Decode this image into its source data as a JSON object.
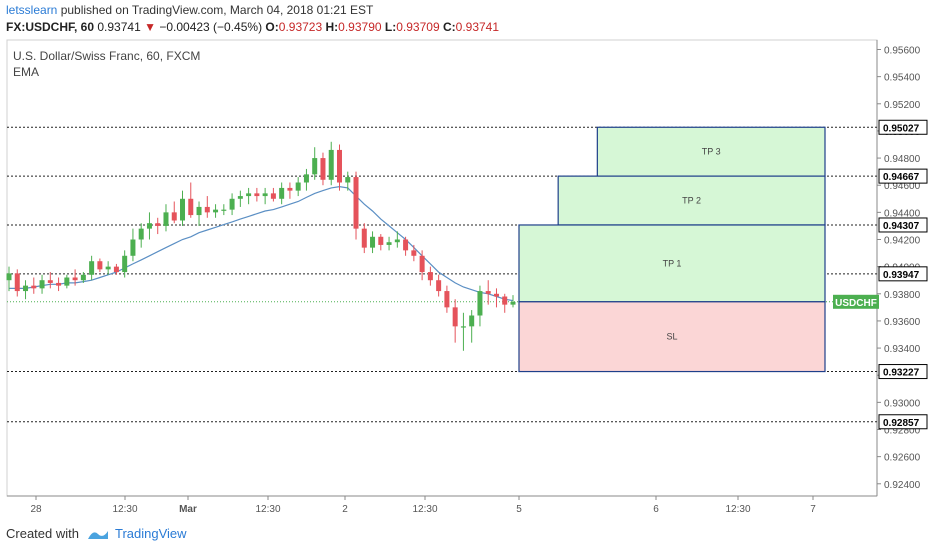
{
  "header": {
    "author": "letsslearn",
    "published_text": "published on TradingView.com, March 04, 2018 01:21 EST",
    "symbol_timeframe": "FX:USDCHF, 60",
    "last_price": "0.93741",
    "change": "−0.00423 (−0.45%)",
    "o_label": "O:",
    "o_value": "0.93723",
    "h_label": "H:",
    "h_value": "0.93790",
    "l_label": "L:",
    "l_value": "0.93709",
    "c_label": "C:",
    "c_value": "0.93741"
  },
  "pane": {
    "title": "U.S. Dollar/Swiss Franc, 60, FXCM",
    "indicator": "EMA"
  },
  "footer": {
    "created_with": "Created with",
    "brand": "TradingView"
  },
  "colors": {
    "up": "#4caf50",
    "down": "#e5535b",
    "ema": "#5b8fc4",
    "tp_fill": "#d6f7d6",
    "sl_fill": "#fbd6d6",
    "box_border": "#1e3f8a",
    "symbol_tag": "#4caf50"
  },
  "chart_data": {
    "type": "candlestick",
    "y_range": [
      0.9231,
      0.9567
    ],
    "y_ticks": [
      "0.95600",
      "0.95400",
      "0.95200",
      "0.95000",
      "0.94800",
      "0.94600",
      "0.94400",
      "0.94200",
      "0.94000",
      "0.93800",
      "0.93600",
      "0.93400",
      "0.93200",
      "0.93000",
      "0.92800",
      "0.92600",
      "0.92400"
    ],
    "x_tick_labels": [
      "28",
      "12:30",
      "Mar",
      "12:30",
      "2",
      "12:30",
      "5",
      "6",
      "12:30",
      "7"
    ],
    "levels": [
      {
        "value": 0.95027,
        "label": "0.95027"
      },
      {
        "value": 0.94667,
        "label": "0.94667"
      },
      {
        "value": 0.94307,
        "label": "0.94307"
      },
      {
        "value": 0.93947,
        "label": "0.93947"
      },
      {
        "value": 0.93227,
        "label": "0.93227"
      },
      {
        "value": 0.92857,
        "label": "0.92857"
      }
    ],
    "current_price": 0.93741,
    "symbol_tag": "USDCHF",
    "zones": [
      {
        "label": "TP 3",
        "top": 0.95027,
        "bottom": 0.94667,
        "kind": "tp",
        "start": "5 +10h",
        "end": "7 +0h"
      },
      {
        "label": "TP 2",
        "top": 0.94667,
        "bottom": 0.94307,
        "kind": "tp",
        "start": "5 +5h",
        "end": "7 +0h"
      },
      {
        "label": "TP 1",
        "top": 0.94307,
        "bottom": 0.93741,
        "kind": "tp",
        "start": "5 +0h",
        "end": "7 +0h"
      },
      {
        "label": "SL",
        "top": 0.93741,
        "bottom": 0.93227,
        "kind": "sl",
        "start": "5 +0h",
        "end": "7 +0h"
      }
    ],
    "candles": [
      [
        0.939,
        0.94,
        0.9382,
        0.9395
      ],
      [
        0.9395,
        0.9398,
        0.9378,
        0.9382
      ],
      [
        0.9382,
        0.939,
        0.9376,
        0.9386
      ],
      [
        0.9386,
        0.9392,
        0.938,
        0.9384
      ],
      [
        0.9384,
        0.9394,
        0.938,
        0.939
      ],
      [
        0.939,
        0.9396,
        0.9384,
        0.9388
      ],
      [
        0.9388,
        0.9392,
        0.9382,
        0.9386
      ],
      [
        0.9386,
        0.9394,
        0.9384,
        0.9392
      ],
      [
        0.9392,
        0.9398,
        0.9386,
        0.939
      ],
      [
        0.939,
        0.9396,
        0.9388,
        0.9394
      ],
      [
        0.9394,
        0.9408,
        0.939,
        0.9404
      ],
      [
        0.9404,
        0.9406,
        0.9396,
        0.9398
      ],
      [
        0.9398,
        0.9404,
        0.9394,
        0.94
      ],
      [
        0.94,
        0.9402,
        0.9394,
        0.9396
      ],
      [
        0.9396,
        0.9412,
        0.9392,
        0.9408
      ],
      [
        0.9408,
        0.9428,
        0.9404,
        0.942
      ],
      [
        0.942,
        0.9432,
        0.9414,
        0.9428
      ],
      [
        0.9428,
        0.944,
        0.942,
        0.9432
      ],
      [
        0.9432,
        0.9436,
        0.9424,
        0.943
      ],
      [
        0.943,
        0.9446,
        0.9426,
        0.944
      ],
      [
        0.944,
        0.9448,
        0.9432,
        0.9434
      ],
      [
        0.9434,
        0.9456,
        0.943,
        0.945
      ],
      [
        0.945,
        0.9462,
        0.9436,
        0.9438
      ],
      [
        0.9438,
        0.9448,
        0.943,
        0.9444
      ],
      [
        0.9444,
        0.9452,
        0.9436,
        0.944
      ],
      [
        0.944,
        0.9446,
        0.9436,
        0.9442
      ],
      [
        0.9442,
        0.9446,
        0.9438,
        0.9442
      ],
      [
        0.9442,
        0.9454,
        0.9438,
        0.945
      ],
      [
        0.945,
        0.9456,
        0.9444,
        0.9452
      ],
      [
        0.9452,
        0.9458,
        0.9446,
        0.9454
      ],
      [
        0.9454,
        0.9458,
        0.9448,
        0.9452
      ],
      [
        0.9452,
        0.9458,
        0.9446,
        0.9454
      ],
      [
        0.9454,
        0.9458,
        0.9448,
        0.945
      ],
      [
        0.945,
        0.9462,
        0.9446,
        0.9458
      ],
      [
        0.9458,
        0.9462,
        0.945,
        0.9456
      ],
      [
        0.9456,
        0.9466,
        0.9452,
        0.9462
      ],
      [
        0.9462,
        0.9472,
        0.9456,
        0.9468
      ],
      [
        0.9468,
        0.9488,
        0.9464,
        0.948
      ],
      [
        0.948,
        0.9484,
        0.946,
        0.9464
      ],
      [
        0.9464,
        0.9492,
        0.946,
        0.9486
      ],
      [
        0.9486,
        0.949,
        0.9456,
        0.9462
      ],
      [
        0.9462,
        0.947,
        0.9456,
        0.9466
      ],
      [
        0.9466,
        0.947,
        0.942,
        0.9428
      ],
      [
        0.9428,
        0.9432,
        0.941,
        0.9414
      ],
      [
        0.9414,
        0.9426,
        0.941,
        0.9422
      ],
      [
        0.9422,
        0.9424,
        0.9412,
        0.9416
      ],
      [
        0.9416,
        0.9422,
        0.9412,
        0.9418
      ],
      [
        0.9418,
        0.9426,
        0.9414,
        0.942
      ],
      [
        0.942,
        0.9422,
        0.9408,
        0.9412
      ],
      [
        0.9412,
        0.9416,
        0.9404,
        0.9408
      ],
      [
        0.9408,
        0.9412,
        0.939,
        0.9396
      ],
      [
        0.9396,
        0.94,
        0.9386,
        0.939
      ],
      [
        0.939,
        0.9394,
        0.9378,
        0.9382
      ],
      [
        0.9382,
        0.9386,
        0.9366,
        0.937
      ],
      [
        0.937,
        0.9376,
        0.9344,
        0.9356
      ],
      [
        0.9356,
        0.9366,
        0.9338,
        0.9356
      ],
      [
        0.9356,
        0.9368,
        0.9344,
        0.9364
      ],
      [
        0.9364,
        0.9386,
        0.9356,
        0.9382
      ],
      [
        0.9382,
        0.939,
        0.9372,
        0.938
      ],
      [
        0.938,
        0.9384,
        0.937,
        0.9378
      ],
      [
        0.9378,
        0.938,
        0.9366,
        0.9372
      ],
      [
        0.9372,
        0.9379,
        0.937,
        0.9374
      ]
    ],
    "ema": [
      0.9384,
      0.9384,
      0.9384,
      0.9385,
      0.9386,
      0.9387,
      0.9387,
      0.9388,
      0.9388,
      0.9389,
      0.939,
      0.9392,
      0.9394,
      0.9396,
      0.9399,
      0.9402,
      0.9405,
      0.9408,
      0.9411,
      0.9414,
      0.9417,
      0.942,
      0.9422,
      0.9425,
      0.9427,
      0.9429,
      0.9431,
      0.9433,
      0.9435,
      0.9437,
      0.9439,
      0.9441,
      0.9442,
      0.9444,
      0.9446,
      0.9448,
      0.9451,
      0.9454,
      0.9456,
      0.9458,
      0.9459,
      0.9458,
      0.9452,
      0.9446,
      0.9441,
      0.9435,
      0.943,
      0.9425,
      0.942,
      0.9414,
      0.9408,
      0.9402,
      0.9396,
      0.9392,
      0.9388,
      0.9385,
      0.9383,
      0.9381,
      0.938,
      0.9378,
      0.9376,
      0.9375
    ]
  }
}
